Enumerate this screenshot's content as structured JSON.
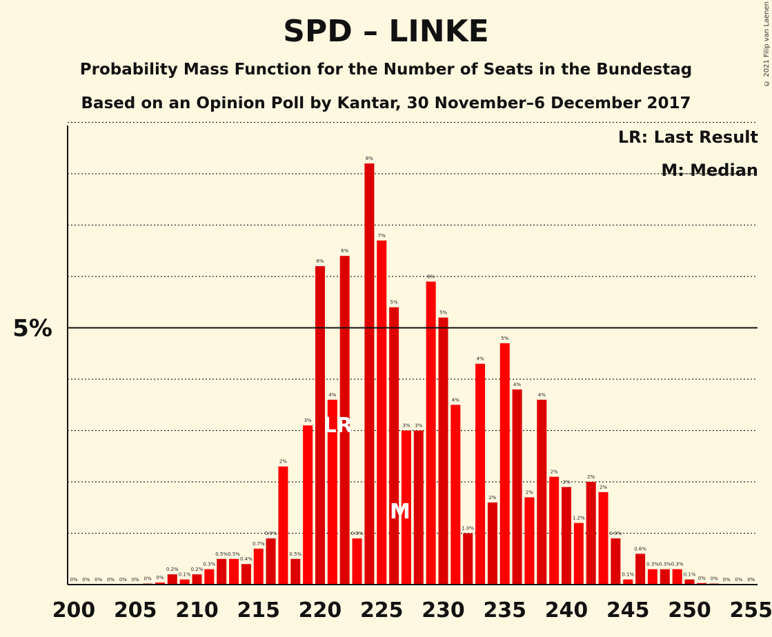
{
  "title": "SPD – LINKE",
  "subtitle1": "Probability Mass Function for the Number of Seats in the Bundestag",
  "subtitle2": "Based on an Opinion Poll by Kantar, 30 November–6 December 2017",
  "copyright": "© 2021 Filip van Laenen",
  "legend": {
    "last_result": "LR: Last Result",
    "median": "M: Median"
  },
  "colors": {
    "background": "#FFF8E1",
    "bar_dark": "#DD0000",
    "bar_light": "#FF0000",
    "marker_text": "#FFFFFF"
  },
  "chart_data": {
    "type": "bar",
    "x": [
      200,
      201,
      202,
      203,
      204,
      205,
      206,
      207,
      208,
      209,
      210,
      211,
      212,
      213,
      214,
      215,
      216,
      217,
      218,
      219,
      220,
      221,
      222,
      223,
      224,
      225,
      226,
      227,
      228,
      229,
      230,
      231,
      232,
      233,
      234,
      235,
      236,
      237,
      238,
      239,
      240,
      241,
      242,
      243,
      244,
      245,
      246,
      247,
      248,
      249,
      250,
      251,
      252,
      253,
      254,
      255
    ],
    "values": [
      0,
      0,
      0,
      0,
      0,
      0,
      0.02,
      0.04,
      0.2,
      0.1,
      0.2,
      0.3,
      0.5,
      0.5,
      0.4,
      0.7,
      0.9,
      2.3,
      0.5,
      3.1,
      6.2,
      3.6,
      6.4,
      0.9,
      8.2,
      6.7,
      5.4,
      3.0,
      3.0,
      5.9,
      5.2,
      3.5,
      1.0,
      4.3,
      1.6,
      4.7,
      3.8,
      1.7,
      3.6,
      2.1,
      1.9,
      1.2,
      2.0,
      1.8,
      0.9,
      0.1,
      0.6,
      0.3,
      0.3,
      0.3,
      0.1,
      0.03,
      0.02,
      0,
      0,
      0
    ],
    "labels": [
      "0%",
      "0%",
      "0%",
      "0%",
      "0%",
      "0%",
      "0%",
      "0%",
      "0.2%",
      "0.1%",
      "0.2%",
      "0.3%",
      "0.5%",
      "0.5%",
      "0.4%",
      "0.7%",
      "0.9%",
      "2%",
      "0.5%",
      "3%",
      "6%",
      "4%",
      "6%",
      "0.9%",
      "8%",
      "7%",
      "5%",
      "3%",
      "3%",
      "6%",
      "5%",
      "4%",
      "1.0%",
      "4%",
      "2%",
      "5%",
      "4%",
      "2%",
      "4%",
      "2%",
      "2%",
      "1.2%",
      "2%",
      "2%",
      "0.9%",
      "0.1%",
      "0.6%",
      "0.3%",
      "0.3%",
      "0.3%",
      "0.1%",
      "0%",
      "0%",
      "0%",
      "0%",
      "0%"
    ],
    "ylim": [
      0,
      9
    ],
    "y_tick_label": "5%",
    "y_tick_value": 5,
    "x_ticks": [
      200,
      205,
      210,
      215,
      220,
      225,
      230,
      235,
      240,
      245,
      250,
      255
    ],
    "grid": "dotted every 1%",
    "last_result": {
      "x": 222,
      "label": "LR"
    },
    "median": {
      "x": 227,
      "label": "M"
    }
  }
}
